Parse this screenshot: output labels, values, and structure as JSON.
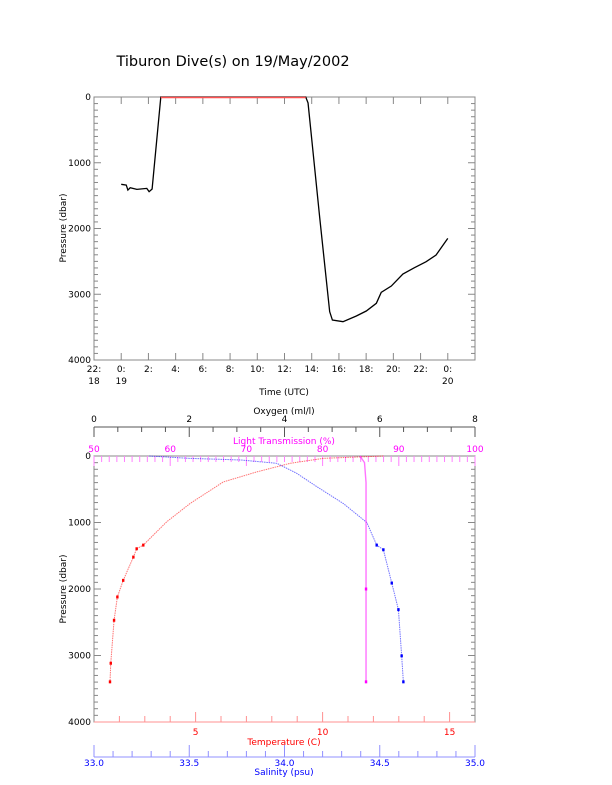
{
  "chart_data": [
    {
      "type": "line",
      "title": "Tiburon Dive(s) on 19/May/2002",
      "xlabel": "Time (UTC)",
      "ylabel": "Pressure (dbar)",
      "x_units": "hours since 0:00 19 May 2002",
      "xlim": [
        -2,
        26
      ],
      "ylim": [
        4000,
        0
      ],
      "y_ticks": [
        0,
        1000,
        2000,
        3000,
        4000
      ],
      "x_ticks": [
        {
          "value": -2,
          "line1": "22:",
          "line2": "18"
        },
        {
          "value": 0,
          "line1": "0:",
          "line2": "19"
        },
        {
          "value": 2,
          "line1": "2:",
          "line2": ""
        },
        {
          "value": 4,
          "line1": "4:",
          "line2": ""
        },
        {
          "value": 6,
          "line1": "6:",
          "line2": ""
        },
        {
          "value": 8,
          "line1": "8:",
          "line2": ""
        },
        {
          "value": 10,
          "line1": "10:",
          "line2": ""
        },
        {
          "value": 12,
          "line1": "12:",
          "line2": ""
        },
        {
          "value": 14,
          "line1": "14:",
          "line2": ""
        },
        {
          "value": 16,
          "line1": "16:",
          "line2": ""
        },
        {
          "value": 18,
          "line1": "18:",
          "line2": ""
        },
        {
          "value": 20,
          "line1": "20:",
          "line2": ""
        },
        {
          "value": 22,
          "line1": "22:",
          "line2": ""
        },
        {
          "value": 24,
          "line1": "0:",
          "line2": "20"
        }
      ],
      "series": [
        {
          "name": "pressure",
          "color": "#000000",
          "x": [
            0.0,
            0.37,
            0.49,
            0.66,
            1.15,
            1.88,
            2.05,
            2.27,
            2.91,
            13.56,
            13.73,
            14.59,
            15.32,
            15.52,
            16.3,
            17.28,
            18.01,
            18.75,
            19.11,
            19.85,
            20.7,
            21.55,
            22.41,
            23.14,
            24.0
          ],
          "y": [
            1328,
            1340,
            1415,
            1380,
            1405,
            1390,
            1440,
            1400,
            0,
            0,
            90,
            1840,
            3265,
            3392,
            3417,
            3331,
            3255,
            3138,
            2971,
            2875,
            2692,
            2596,
            2505,
            2403,
            2150
          ]
        }
      ]
    },
    {
      "type": "scatter",
      "ylabel": "Pressure (dbar)",
      "ylim": [
        4000,
        0
      ],
      "y_ticks": [
        0,
        1000,
        2000,
        3000,
        4000
      ],
      "axes": {
        "oxygen": {
          "label": "Oxygen (ml/l)",
          "range": [
            0,
            8
          ],
          "ticks": [
            0,
            2,
            4,
            6,
            8
          ],
          "color": "#000000",
          "position": "top-outer"
        },
        "light": {
          "label": "Light Transmission (%)",
          "range": [
            50,
            100
          ],
          "ticks": [
            50,
            60,
            70,
            80,
            90,
            100
          ],
          "color": "#ff00ff",
          "position": "top"
        },
        "temperature": {
          "label": "Temperature (C)",
          "range": [
            1,
            16
          ],
          "ticks": [
            5,
            10,
            15
          ],
          "color": "#ff0000",
          "position": "bottom"
        },
        "salinity": {
          "label": "Salinity (psu)",
          "range": [
            33,
            35
          ],
          "ticks": [
            "33.0",
            "33.5",
            "34.0",
            "34.5",
            "35.0"
          ],
          "color": "#0000ff",
          "position": "bottom-outer"
        }
      },
      "series": [
        {
          "name": "Temperature",
          "axis": "temperature",
          "color": "#ff0000",
          "x": [
            12.39,
            10.03,
            8.72,
            7.4,
            6.09,
            4.78,
            3.86,
            2.94,
            2.68,
            2.55,
            2.15,
            1.92,
            1.79,
            1.66,
            1.63
          ],
          "y": [
            0,
            35,
            110,
            240,
            390,
            715,
            990,
            1340,
            1395,
            1520,
            1870,
            2120,
            2470,
            3117,
            3396
          ]
        },
        {
          "name": "Salinity",
          "axis": "salinity",
          "color": "#0000ff",
          "x": [
            33.29,
            33.5,
            33.77,
            33.96,
            34.064,
            34.169,
            34.309,
            34.432,
            34.484,
            34.519,
            34.563,
            34.598,
            34.615,
            34.624
          ],
          "y": [
            0,
            35,
            60,
            110,
            260,
            460,
            715,
            1000,
            1340,
            1410,
            1910,
            2310,
            3005,
            3396
          ]
        },
        {
          "name": "Light Transmission",
          "axis": "light",
          "color": "#ff00ff",
          "x": [
            84.9,
            85.5,
            85.7,
            85.7,
            85.7
          ],
          "y": [
            0,
            100,
            400,
            2000,
            3396
          ]
        }
      ]
    }
  ]
}
